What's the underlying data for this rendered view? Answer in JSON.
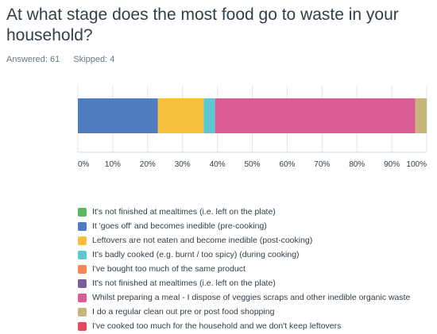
{
  "question": {
    "title": "At what stage does the most food go to waste in your household?",
    "answered": "Answered: 61",
    "skipped": "Skipped: 4"
  },
  "chart_data": {
    "type": "bar",
    "orientation": "horizontal-stacked",
    "xlim": [
      0,
      100
    ],
    "x_tick_labels": [
      "0%",
      "10%",
      "20%",
      "30%",
      "40%",
      "50%",
      "60%",
      "70%",
      "80%",
      "90%",
      "100%"
    ],
    "grid": true,
    "legend_position": "bottom",
    "series": [
      {
        "name": "It's not finished at mealtimes (i.e. left on the plate)",
        "value": 0,
        "color": "#5cb85c"
      },
      {
        "name": "It 'goes off' and becomes inedible (pre-cooking)",
        "value": 22.95,
        "color": "#4f7cbf"
      },
      {
        "name": "Leftovers are not eaten and become inedible (post-cooking)",
        "value": 13.11,
        "color": "#f8bf3c"
      },
      {
        "name": "It's badly cooked (e.g. burnt / too spicy) (during cooking)",
        "value": 3.28,
        "color": "#5fc7d1"
      },
      {
        "name": "I've bought too much of the same product",
        "value": 0,
        "color": "#f48a52"
      },
      {
        "name": "It's not finished at mealtimes (i.e. left on the plate)",
        "value": 0,
        "color": "#7b5d9d"
      },
      {
        "name": "Whilst preparing a meal - I dispose of veggies scraps and other inedible organic waste",
        "value": 57.38,
        "color": "#d95c93"
      },
      {
        "name": "I do a regular clean out pre or post food shopping",
        "value": 3.28,
        "color": "#c8b57c"
      },
      {
        "name": "I've cooked too much for the household and we don't keep leftovers",
        "value": 0,
        "color": "#e5475f"
      }
    ]
  }
}
